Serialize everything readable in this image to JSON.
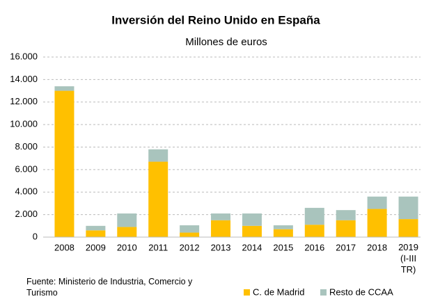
{
  "chart_data": {
    "type": "stacked_bar",
    "title": "Inversión del Reino Unido en España",
    "subtitle": "Millones de euros",
    "source": "Fuente: Ministerio de Industria, Comercio y Turismo",
    "categories": [
      "2008",
      "2009",
      "2010",
      "2011",
      "2012",
      "2013",
      "2014",
      "2015",
      "2016",
      "2017",
      "2018",
      "2019 (I-III TR)"
    ],
    "series": [
      {
        "name": "C. de Madrid",
        "color": "#ffc000",
        "values": [
          13000,
          600,
          900,
          6700,
          400,
          1500,
          1000,
          700,
          1100,
          1500,
          2500,
          1600
        ]
      },
      {
        "name": "Resto de CCAA",
        "color": "#a9c4bd",
        "values": [
          400,
          400,
          1200,
          1100,
          650,
          600,
          1100,
          350,
          1500,
          900,
          1100,
          2000
        ]
      }
    ],
    "ylim": [
      0,
      16000
    ],
    "yticks": [
      0,
      {
        "value": 2000,
        "label": "2.000"
      },
      {
        "value": 4000,
        "label": "4.000"
      },
      {
        "value": 6000,
        "label": "6.000"
      },
      {
        "value": 8000,
        "label": "8.000"
      },
      {
        "value": 10000,
        "label": "10.000"
      },
      {
        "value": 12000,
        "label": "12.000"
      },
      {
        "value": 14000,
        "label": "14.000"
      },
      {
        "value": 16000,
        "label": "16.000"
      }
    ],
    "grid": true,
    "legend": "bottom"
  }
}
